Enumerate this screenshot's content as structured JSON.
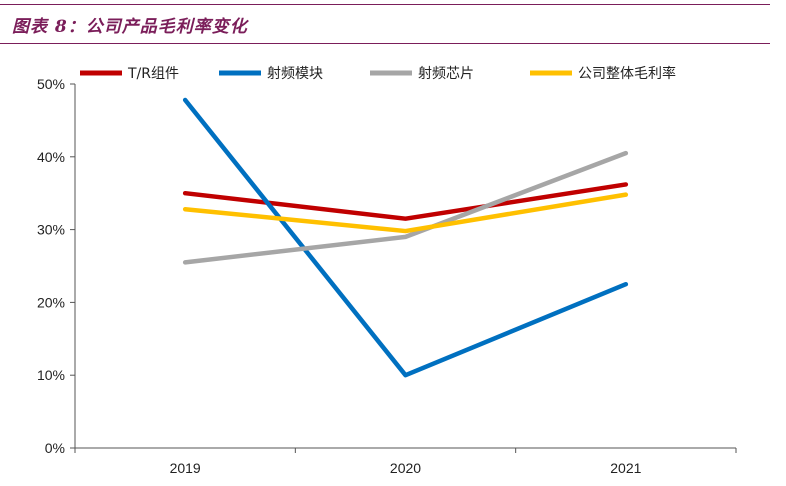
{
  "header": {
    "title": "图表 8：公司产品毛利率变化"
  },
  "chart_data": {
    "type": "line",
    "title": "",
    "xlabel": "",
    "ylabel": "",
    "categories": [
      "2019",
      "2020",
      "2021"
    ],
    "y_ticks": [
      "0%",
      "10%",
      "20%",
      "30%",
      "40%",
      "50%"
    ],
    "ylim": [
      0,
      50
    ],
    "grid": false,
    "legend_position": "top",
    "series": [
      {
        "name": "T/R组件",
        "color": "#c00000",
        "values": [
          35.0,
          31.5,
          36.2
        ]
      },
      {
        "name": "射频模块",
        "color": "#0070c0",
        "values": [
          47.8,
          10.0,
          22.5
        ]
      },
      {
        "name": "射频芯片",
        "color": "#a6a6a6",
        "values": [
          25.5,
          29.0,
          40.5
        ]
      },
      {
        "name": "公司整体毛利率",
        "color": "#ffc000",
        "values": [
          32.8,
          29.8,
          34.8
        ]
      }
    ]
  }
}
